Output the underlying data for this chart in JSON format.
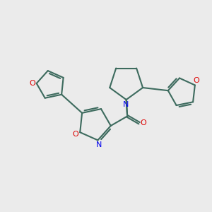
{
  "bg_color": "#ebebeb",
  "bond_color": "#3d6b5e",
  "N_color": "#0000ee",
  "O_color": "#dd0000",
  "lw": 1.5,
  "dbo": 0.09,
  "fs": 8.0,
  "xlim": [
    0,
    10
  ],
  "ylim": [
    0,
    10
  ]
}
